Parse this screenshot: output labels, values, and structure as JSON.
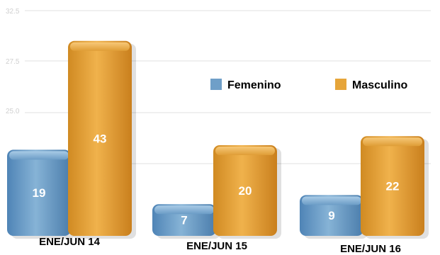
{
  "chart_data": {
    "type": "bar",
    "title": "",
    "xlabel": "",
    "ylabel": "",
    "categories": [
      "ENE/JUN 14",
      "ENE/JUN 15",
      "ENE/JUN 16"
    ],
    "series": [
      {
        "name": "Femenino",
        "values": [
          19,
          7,
          9
        ],
        "color": "#6f9fc8"
      },
      {
        "name": "Masculino",
        "values": [
          43,
          20,
          22
        ],
        "color": "#e6a53a"
      }
    ],
    "yticks": [
      "32.5",
      "27.5",
      "25.0"
    ],
    "grid": true,
    "legend_position": "top-right"
  }
}
